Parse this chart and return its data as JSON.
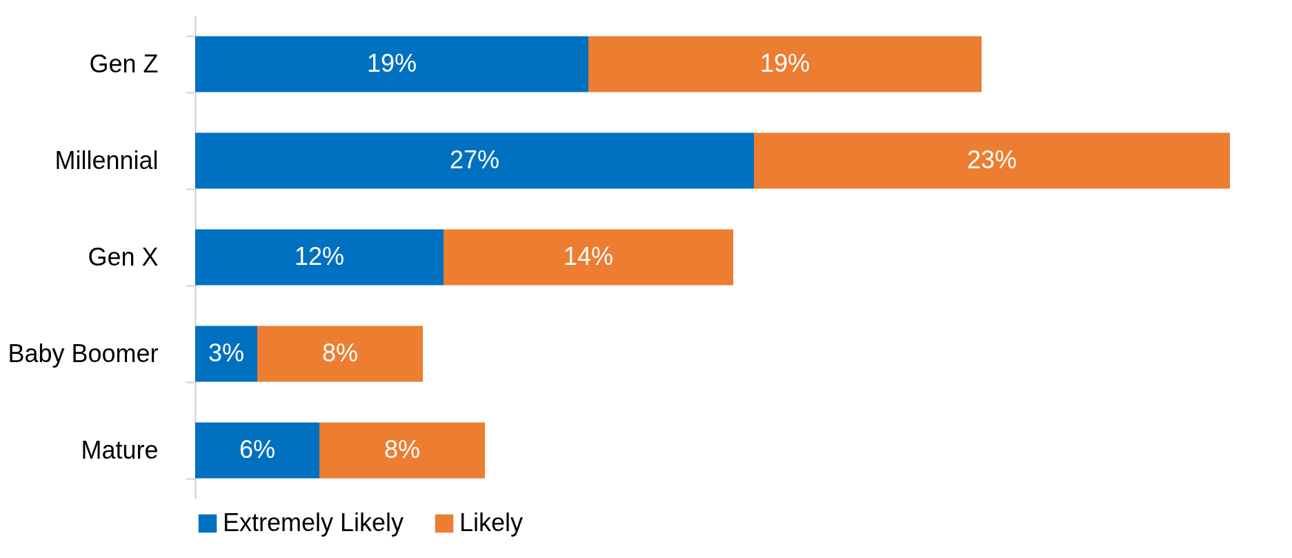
{
  "chart_data": {
    "type": "bar",
    "orientation": "horizontal",
    "stacked": true,
    "categories": [
      "Gen Z",
      "Millennial",
      "Gen X",
      "Baby Boomer",
      "Mature"
    ],
    "series": [
      {
        "name": "Extremely Likely",
        "color": "#0070c0",
        "values": [
          19,
          27,
          12,
          3,
          6
        ],
        "value_labels": [
          "19%",
          "27%",
          "12%",
          "3%",
          "6%"
        ]
      },
      {
        "name": "Likely",
        "color": "#ed7d31",
        "values": [
          19,
          23,
          14,
          8,
          8
        ],
        "value_labels": [
          "19%",
          "23%",
          "14%",
          "8%",
          "8%"
        ]
      }
    ],
    "legend": "bottom",
    "grid": false
  }
}
